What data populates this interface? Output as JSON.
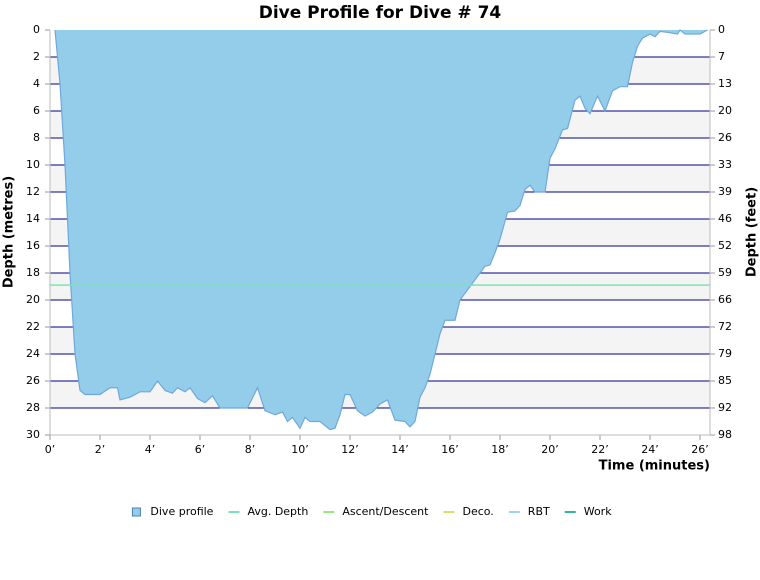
{
  "chart_data": {
    "type": "area",
    "title": "Dive Profile for Dive # 74",
    "xlabel": "Time (minutes)",
    "ylabel": "Depth (metres)",
    "y2label": "Depth (feet)",
    "xlim": [
      0,
      26.4
    ],
    "xticks": [
      {
        "value": 0,
        "label": "0’"
      },
      {
        "value": 2,
        "label": "2’"
      },
      {
        "value": 4,
        "label": "4’"
      },
      {
        "value": 6,
        "label": "6’"
      },
      {
        "value": 8,
        "label": "8’"
      },
      {
        "value": 10,
        "label": "10’"
      },
      {
        "value": 12,
        "label": "12’"
      },
      {
        "value": 14,
        "label": "14’"
      },
      {
        "value": 16,
        "label": "16’"
      },
      {
        "value": 18,
        "label": "18’"
      },
      {
        "value": 20,
        "label": "20’"
      },
      {
        "value": 22,
        "label": "22’"
      },
      {
        "value": 24,
        "label": "24’"
      },
      {
        "value": 26,
        "label": "26’"
      }
    ],
    "ylim": [
      0,
      30
    ],
    "yticks": [
      0,
      2,
      4,
      6,
      8,
      10,
      12,
      14,
      16,
      18,
      20,
      22,
      24,
      26,
      28,
      30
    ],
    "y2lim": [
      0,
      98.43
    ],
    "y2ticks": [
      0,
      {
        "value": 6.56,
        "label": "7"
      },
      {
        "value": 13.12,
        "label": "13"
      },
      {
        "value": 19.69,
        "label": "20"
      },
      {
        "value": 26.25,
        "label": "26"
      },
      {
        "value": 32.81,
        "label": "33"
      },
      {
        "value": 39.37,
        "label": "39"
      },
      {
        "value": 45.93,
        "label": "46"
      },
      {
        "value": 52.49,
        "label": "52"
      },
      {
        "value": 59.06,
        "label": "59"
      },
      {
        "value": 65.62,
        "label": "66"
      },
      {
        "value": 72.18,
        "label": "72"
      },
      {
        "value": 78.74,
        "label": "79"
      },
      {
        "value": 85.3,
        "label": "85"
      },
      {
        "value": 91.86,
        "label": "92"
      },
      {
        "value": 98.43,
        "label": "98"
      }
    ],
    "grid": true,
    "x": [
      0.2,
      0.4,
      0.6,
      0.8,
      1.0,
      1.2,
      1.4,
      2.0,
      2.4,
      2.7,
      2.8,
      3.2,
      3.6,
      4.0,
      4.3,
      4.6,
      4.9,
      5.1,
      5.4,
      5.6,
      5.9,
      6.2,
      6.5,
      6.8,
      7.9,
      8.3,
      8.6,
      9.0,
      9.3,
      9.5,
      9.7,
      10.0,
      10.2,
      10.4,
      10.8,
      11.2,
      11.4,
      11.6,
      11.8,
      12.0,
      12.3,
      12.6,
      12.9,
      13.2,
      13.5,
      13.8,
      14.2,
      14.4,
      14.6,
      14.8,
      15.0,
      15.2,
      15.4,
      15.6,
      15.8,
      16.2,
      16.4,
      16.8,
      17.2,
      17.4,
      17.6,
      17.8,
      18.0,
      18.3,
      18.6,
      18.8,
      19.0,
      19.2,
      19.4,
      19.8,
      20.0,
      20.2,
      20.5,
      20.7,
      21.0,
      21.2,
      21.4,
      21.6,
      21.9,
      22.2,
      22.5,
      22.8,
      23.1,
      23.3,
      23.5,
      23.7,
      24.0,
      24.2,
      24.4,
      24.8,
      25.1,
      25.2,
      25.4,
      26.0,
      26.3
    ],
    "series": [
      {
        "name": "Dive profile",
        "color": "#93cde9",
        "values": [
          0,
          4,
          10,
          18,
          24,
          26.7,
          27,
          27,
          26.5,
          26.5,
          27.4,
          27.2,
          26.8,
          26.8,
          26,
          26.7,
          26.9,
          26.5,
          26.8,
          26.5,
          27.3,
          27.6,
          27.1,
          28,
          28,
          26.5,
          28.2,
          28.5,
          28.3,
          29,
          28.7,
          29.5,
          28.7,
          29,
          29,
          29.6,
          29.5,
          28.5,
          27,
          27,
          28.2,
          28.6,
          28.3,
          27.7,
          27.4,
          28.9,
          29,
          29.4,
          29,
          27.2,
          26.5,
          25.5,
          24,
          22.5,
          21.5,
          21.5,
          20,
          19,
          18,
          17.5,
          17.4,
          16.5,
          15.5,
          13.5,
          13.4,
          13,
          11.8,
          11.5,
          12,
          12,
          9.5,
          8.8,
          7.4,
          7.3,
          5.2,
          4.9,
          5.8,
          6.2,
          4.9,
          6,
          4.5,
          4.2,
          4.2,
          2.4,
          1.2,
          0.6,
          0.3,
          0.5,
          0.1,
          0.2,
          0.3,
          0,
          0.3,
          0.3,
          0
        ]
      },
      {
        "name": "Avg. Depth",
        "color": "#7be3b5",
        "value": 18.9
      },
      {
        "name": "Ascent/Descent",
        "color": "#99e67a"
      },
      {
        "name": "Deco.",
        "color": "#d4e066"
      },
      {
        "name": "RBT",
        "color": "#99d5f0"
      },
      {
        "name": "Work",
        "color": "#33b39a"
      }
    ]
  }
}
